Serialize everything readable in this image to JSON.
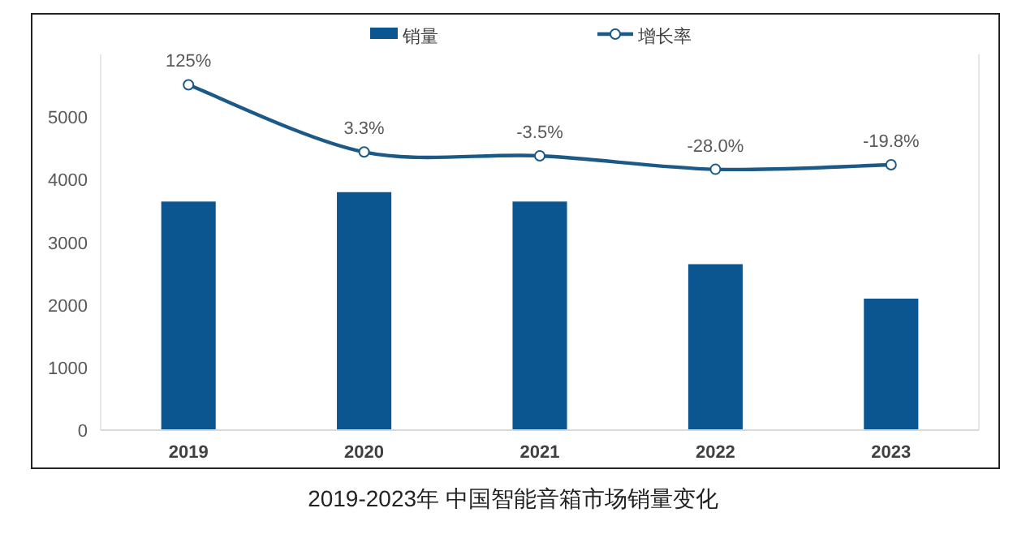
{
  "chart_data": {
    "type": "bar",
    "title": "2019-2023年 中国智能音箱市场销量变化",
    "categories": [
      "2019",
      "2020",
      "2021",
      "2022",
      "2023"
    ],
    "series": [
      {
        "name": "销量",
        "color": "#0b5591",
        "values": [
          3650,
          3800,
          3650,
          2650,
          2100
        ]
      },
      {
        "name": "增长率",
        "type": "line",
        "axis": "y2",
        "color": "#1b5a86",
        "marker": "circle",
        "values": [
          125,
          3.3,
          -3.5,
          -28.0,
          -19.8
        ],
        "value_labels": [
          "125%",
          "3.3%",
          "-3.5%",
          "-28.0%",
          "-19.8%"
        ]
      }
    ],
    "ylim": [
      0,
      6000
    ],
    "yticks": [
      0,
      1000,
      2000,
      3000,
      4000,
      5000
    ],
    "y2lim": [
      -500,
      180
    ],
    "grid": false,
    "legend": "top"
  }
}
